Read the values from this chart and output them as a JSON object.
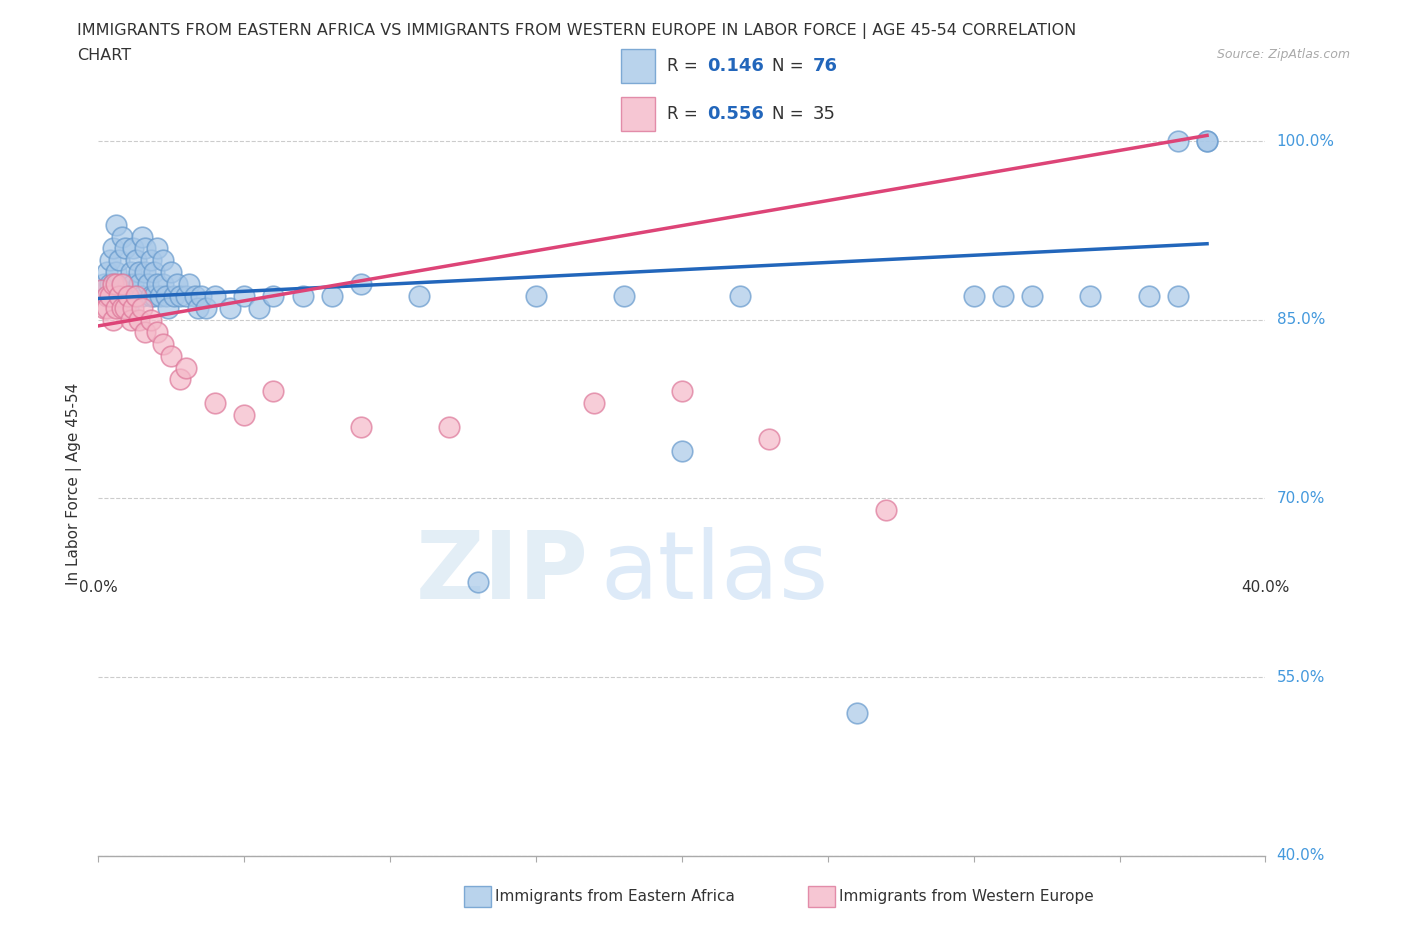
{
  "title_line1": "IMMIGRANTS FROM EASTERN AFRICA VS IMMIGRANTS FROM WESTERN EUROPE IN LABOR FORCE | AGE 45-54 CORRELATION",
  "title_line2": "CHART",
  "source": "Source: ZipAtlas.com",
  "ylabel": "In Labor Force | Age 45-54",
  "xmin": 0.0,
  "xmax": 0.4,
  "ymin": 0.4,
  "ymax": 1.025,
  "yticks": [
    0.4,
    0.55,
    0.7,
    0.85,
    1.0
  ],
  "ytick_labels": [
    "40.0%",
    "55.0%",
    "70.0%",
    "85.0%",
    "100.0%"
  ],
  "xtick_labels_left": "0.0%",
  "xtick_labels_right": "40.0%",
  "blue_color": "#a8c8e8",
  "blue_edge_color": "#6699cc",
  "pink_color": "#f4b8c8",
  "pink_edge_color": "#dd7799",
  "blue_line_color": "#2266bb",
  "pink_line_color": "#dd4477",
  "R_blue": "0.146",
  "N_blue": "76",
  "R_pink": "0.556",
  "N_pink": "35",
  "watermark_zip": "ZIP",
  "watermark_atlas": "atlas",
  "background_color": "#ffffff",
  "grid_color": "#cccccc",
  "right_label_color": "#4499dd",
  "legend_text_color": "#333333",
  "legend_rn_color": "#2266bb",
  "blue_x": [
    0.001,
    0.002,
    0.003,
    0.003,
    0.004,
    0.004,
    0.005,
    0.005,
    0.006,
    0.006,
    0.007,
    0.007,
    0.008,
    0.008,
    0.009,
    0.009,
    0.01,
    0.01,
    0.011,
    0.011,
    0.012,
    0.012,
    0.013,
    0.013,
    0.014,
    0.014,
    0.015,
    0.015,
    0.016,
    0.016,
    0.017,
    0.018,
    0.018,
    0.019,
    0.019,
    0.02,
    0.02,
    0.021,
    0.022,
    0.022,
    0.023,
    0.024,
    0.025,
    0.026,
    0.027,
    0.028,
    0.03,
    0.031,
    0.033,
    0.034,
    0.035,
    0.037,
    0.04,
    0.045,
    0.05,
    0.055,
    0.06,
    0.07,
    0.08,
    0.09,
    0.11,
    0.13,
    0.15,
    0.18,
    0.2,
    0.22,
    0.26,
    0.3,
    0.31,
    0.32,
    0.34,
    0.36,
    0.37,
    0.37,
    0.38,
    0.38
  ],
  "blue_y": [
    0.875,
    0.88,
    0.87,
    0.89,
    0.9,
    0.88,
    0.91,
    0.88,
    0.93,
    0.89,
    0.87,
    0.9,
    0.92,
    0.88,
    0.87,
    0.91,
    0.88,
    0.86,
    0.89,
    0.87,
    0.91,
    0.88,
    0.9,
    0.87,
    0.89,
    0.88,
    0.92,
    0.87,
    0.91,
    0.89,
    0.88,
    0.87,
    0.9,
    0.89,
    0.87,
    0.91,
    0.88,
    0.87,
    0.88,
    0.9,
    0.87,
    0.86,
    0.89,
    0.87,
    0.88,
    0.87,
    0.87,
    0.88,
    0.87,
    0.86,
    0.87,
    0.86,
    0.87,
    0.86,
    0.87,
    0.86,
    0.87,
    0.87,
    0.87,
    0.88,
    0.87,
    0.63,
    0.87,
    0.87,
    0.74,
    0.87,
    0.52,
    0.87,
    0.87,
    0.87,
    0.87,
    0.87,
    0.87,
    1.0,
    1.0,
    1.0
  ],
  "pink_x": [
    0.001,
    0.002,
    0.003,
    0.003,
    0.004,
    0.005,
    0.005,
    0.006,
    0.006,
    0.007,
    0.008,
    0.008,
    0.009,
    0.01,
    0.011,
    0.012,
    0.013,
    0.014,
    0.015,
    0.016,
    0.018,
    0.02,
    0.022,
    0.025,
    0.028,
    0.03,
    0.04,
    0.05,
    0.06,
    0.09,
    0.12,
    0.17,
    0.2,
    0.23,
    0.27
  ],
  "pink_y": [
    0.875,
    0.86,
    0.87,
    0.86,
    0.87,
    0.85,
    0.88,
    0.86,
    0.88,
    0.87,
    0.86,
    0.88,
    0.86,
    0.87,
    0.85,
    0.86,
    0.87,
    0.85,
    0.86,
    0.84,
    0.85,
    0.84,
    0.83,
    0.82,
    0.8,
    0.81,
    0.78,
    0.77,
    0.79,
    0.76,
    0.76,
    0.78,
    0.79,
    0.75,
    0.69
  ],
  "blue_line_x0": 0.0,
  "blue_line_y0": 0.868,
  "blue_line_x1": 0.38,
  "blue_line_y1": 0.914,
  "pink_line_x0": 0.0,
  "pink_line_y0": 0.845,
  "pink_line_x1": 0.38,
  "pink_line_y1": 1.005
}
